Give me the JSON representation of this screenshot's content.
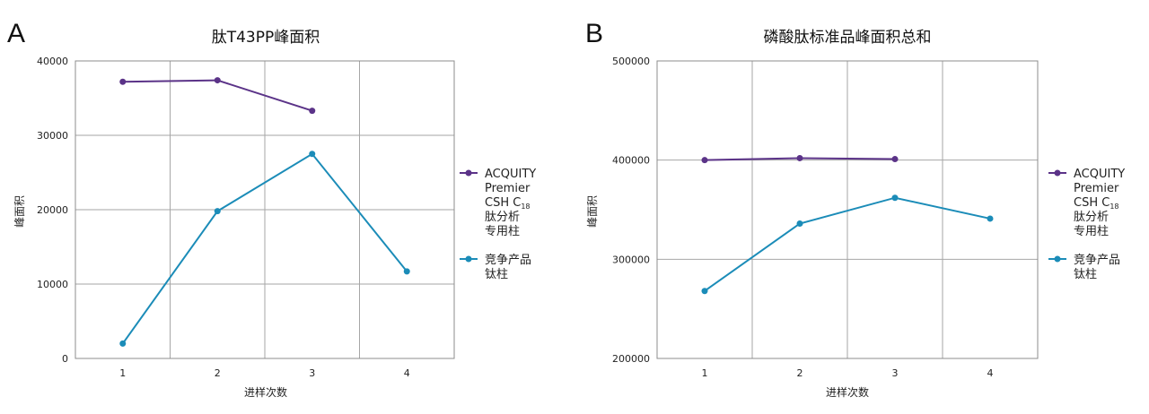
{
  "chart_data": [
    {
      "type": "line",
      "panel": "A",
      "title": "肽T43PP峰面积",
      "xlabel": "进样次数",
      "ylabel": "峰面积",
      "categories": [
        "1",
        "2",
        "3",
        "4"
      ],
      "ylim": [
        0,
        40000
      ],
      "yticks": [
        0,
        10000,
        20000,
        30000,
        40000
      ],
      "grid": true,
      "legend_position": "right",
      "series": [
        {
          "name": "ACQUITY Premier CSH C18 肽分析专用柱",
          "name_lines": [
            "ACQUITY",
            "Premier",
            "CSH C",
            "肽分析",
            "专用柱"
          ],
          "name_subscript": "18",
          "color": "#5b3388",
          "values": [
            37200,
            37400,
            33300,
            null
          ]
        },
        {
          "name": "竞争产品钛柱",
          "name_lines": [
            "竞争产品",
            "钛柱"
          ],
          "color": "#1b8cb8",
          "values": [
            2000,
            19800,
            27500,
            11700
          ]
        }
      ]
    },
    {
      "type": "line",
      "panel": "B",
      "title": "磷酸肽标准品峰面积总和",
      "xlabel": "进样次数",
      "ylabel": "峰面积",
      "categories": [
        "1",
        "2",
        "3",
        "4"
      ],
      "ylim": [
        200000,
        500000
      ],
      "yticks": [
        200000,
        300000,
        400000,
        500000
      ],
      "grid": true,
      "legend_position": "right",
      "series": [
        {
          "name": "ACQUITY Premier CSH C18 肽分析专用柱",
          "name_lines": [
            "ACQUITY",
            "Premier",
            "CSH C",
            "肽分析",
            "专用柱"
          ],
          "name_subscript": "18",
          "color": "#5b3388",
          "values": [
            400000,
            402000,
            401000,
            null
          ]
        },
        {
          "name": "竞争产品钛柱",
          "name_lines": [
            "竞争产品",
            "钛柱"
          ],
          "color": "#1b8cb8",
          "values": [
            268000,
            336000,
            362000,
            341000
          ]
        }
      ]
    }
  ]
}
